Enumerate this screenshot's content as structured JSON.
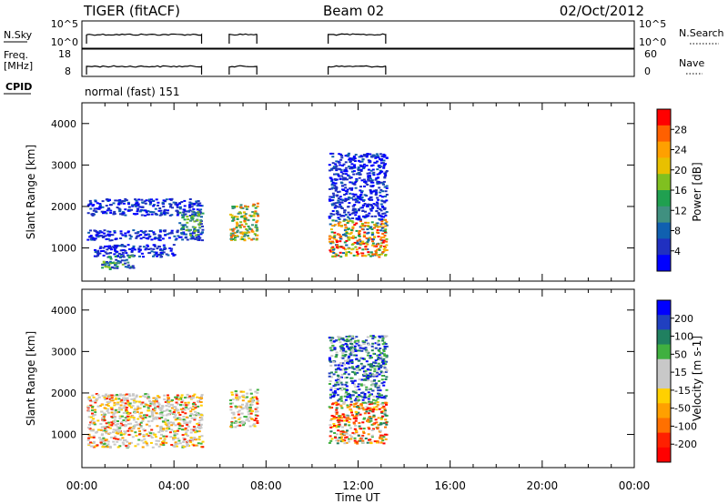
{
  "header": {
    "radar": "TIGER (fitACF)",
    "beam": "Beam 02",
    "date": "02/Oct/2012"
  },
  "panels": {
    "nsky": {
      "label": "N.Sky",
      "ticks": [
        "10^5",
        "10^0"
      ]
    },
    "nsearch": {
      "label": "N.Search",
      "ticks": [
        "10^5",
        "10^0"
      ]
    },
    "freq": {
      "label": "Freq.",
      "unit": "[MHz]",
      "ticks": [
        "18",
        "8"
      ]
    },
    "nave": {
      "label": "Nave",
      "ticks": [
        "60",
        "0"
      ]
    },
    "cpid": {
      "label": "CPID",
      "value": "normal (fast) 151"
    }
  },
  "chart_data": [
    {
      "type": "heatmap",
      "name": "power",
      "ylabel": "Slant Range [km]",
      "xlabel": "Time UT",
      "ylim": [
        200,
        4500
      ],
      "yticks": [
        "4000",
        "3000",
        "2000",
        "1000"
      ],
      "xlim": [
        0,
        24
      ],
      "xticks": [
        "00:00",
        "04:00",
        "08:00",
        "12:00",
        "16:00",
        "20:00",
        "00:00"
      ],
      "colorbar": {
        "label": "Power [dB]",
        "ticks": [
          "28",
          "24",
          "20",
          "16",
          "12",
          "8",
          "4"
        ],
        "colors": [
          "#ff0000",
          "#ff6000",
          "#ffa000",
          "#e8c000",
          "#80c020",
          "#20a050",
          "#409080",
          "#1060b0",
          "#2030c0",
          "#0000ff"
        ]
      },
      "regions": [
        {
          "t0": 0.2,
          "t1": 5.2,
          "r0": 1800,
          "r1": 2200,
          "level": "weak"
        },
        {
          "t0": 0.2,
          "t1": 5.2,
          "r0": 1200,
          "r1": 1450,
          "level": "weak"
        },
        {
          "t0": 0.5,
          "t1": 4.0,
          "r0": 800,
          "r1": 1100,
          "level": "weak"
        },
        {
          "t0": 0.8,
          "t1": 2.2,
          "r0": 500,
          "r1": 850,
          "level": "mid"
        },
        {
          "t0": 4.2,
          "t1": 5.2,
          "r0": 1300,
          "r1": 1900,
          "level": "mid"
        },
        {
          "t0": 6.4,
          "t1": 7.6,
          "r0": 1200,
          "r1": 2100,
          "level": "high"
        },
        {
          "t0": 10.7,
          "t1": 13.2,
          "r0": 800,
          "r1": 1700,
          "level": "strong"
        },
        {
          "t0": 10.7,
          "t1": 13.2,
          "r0": 1700,
          "r1": 3300,
          "level": "weak"
        }
      ]
    },
    {
      "type": "heatmap",
      "name": "velocity",
      "ylabel": "Slant Range [km]",
      "xlabel": "Time UT",
      "ylim": [
        200,
        4500
      ],
      "yticks": [
        "4000",
        "3000",
        "2000",
        "1000"
      ],
      "xlim": [
        0,
        24
      ],
      "xticks": [
        "00:00",
        "04:00",
        "08:00",
        "12:00",
        "16:00",
        "20:00",
        "00:00"
      ],
      "colorbar": {
        "label": "Velocity [m s-1]",
        "ticks": [
          "200",
          "100",
          "50",
          "15",
          "-15",
          "-50",
          "-100",
          "-200"
        ],
        "colors": [
          "#0000ff",
          "#2040c0",
          "#208060",
          "#40b040",
          "#c8c8c8",
          "#c8c8c8",
          "#ffd000",
          "#ffa000",
          "#ff7000",
          "#ff2000",
          "#ff0000"
        ]
      },
      "regions": [
        {
          "t0": 0.2,
          "t1": 5.2,
          "r0": 700,
          "r1": 2000,
          "level": "ground"
        },
        {
          "t0": 6.4,
          "t1": 7.6,
          "r0": 1200,
          "r1": 2100,
          "level": "ground"
        },
        {
          "t0": 10.7,
          "t1": 13.2,
          "r0": 800,
          "r1": 1800,
          "level": "negative"
        },
        {
          "t0": 10.7,
          "t1": 13.2,
          "r0": 1800,
          "r1": 3400,
          "level": "positive"
        }
      ]
    }
  ]
}
